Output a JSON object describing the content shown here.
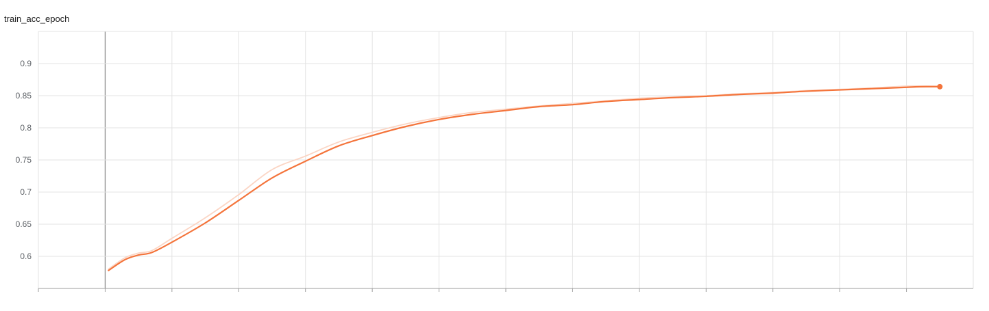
{
  "chart_data": {
    "type": "line",
    "title": "train_acc_epoch",
    "xlabel": "",
    "ylabel": "",
    "ylim": [
      0.55,
      0.95
    ],
    "yticks": [
      "0.6",
      "0.65",
      "0.7",
      "0.75",
      "0.8",
      "0.85",
      "0.9"
    ],
    "xlim": [
      -1,
      13
    ],
    "x_tick_count": 14,
    "x_tick_labels_shown": false,
    "grid": true,
    "legend": "none",
    "series": [
      {
        "color": "#f4743b",
        "smoothed": true,
        "x": [
          0.05,
          0.3,
          0.5,
          0.7,
          1.0,
          1.5,
          2.0,
          2.5,
          3.0,
          3.5,
          4.0,
          4.5,
          5.0,
          5.5,
          6.0,
          6.5,
          7.0,
          7.5,
          8.0,
          8.5,
          9.0,
          9.5,
          10.0,
          10.5,
          11.0,
          11.5,
          12.0,
          12.2,
          12.5
        ],
        "values": [
          0.578,
          0.595,
          0.602,
          0.606,
          0.622,
          0.652,
          0.687,
          0.722,
          0.748,
          0.772,
          0.788,
          0.802,
          0.813,
          0.821,
          0.827,
          0.833,
          0.836,
          0.841,
          0.844,
          0.847,
          0.849,
          0.852,
          0.854,
          0.857,
          0.859,
          0.861,
          0.863,
          0.864,
          0.864
        ]
      },
      {
        "color": "#fbd5c4",
        "smoothed": false,
        "x": [
          0.05,
          0.3,
          0.5,
          0.7,
          1.0,
          1.5,
          2.0,
          2.5,
          3.0,
          3.5,
          4.0,
          4.5,
          5.0,
          5.5,
          6.0,
          6.5,
          7.0,
          7.5,
          8.0,
          8.5,
          9.0,
          9.5,
          10.0,
          10.5,
          11.0,
          11.5,
          12.0,
          12.2,
          12.5
        ],
        "values": [
          0.58,
          0.598,
          0.605,
          0.609,
          0.628,
          0.66,
          0.696,
          0.735,
          0.756,
          0.778,
          0.793,
          0.806,
          0.816,
          0.824,
          0.829,
          0.834,
          0.838,
          0.842,
          0.846,
          0.848,
          0.85,
          0.853,
          0.855,
          0.858,
          0.86,
          0.862,
          0.865,
          0.865,
          0.865
        ]
      }
    ]
  }
}
